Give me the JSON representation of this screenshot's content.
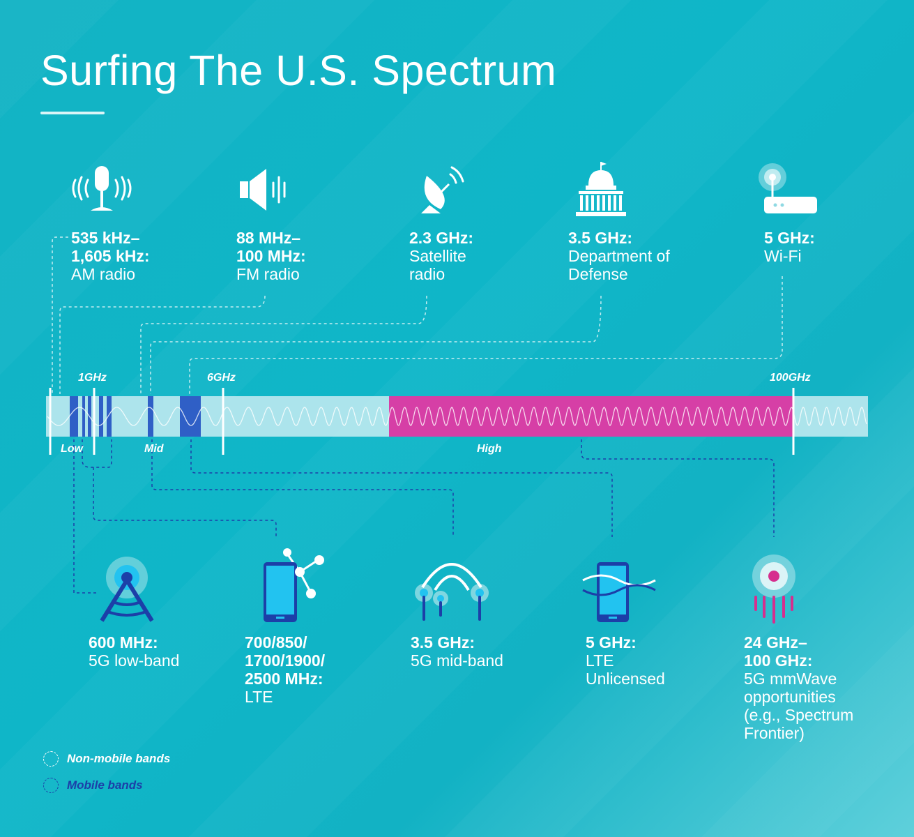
{
  "title": "Surfing The U.S. Spectrum",
  "top_items": [
    {
      "icon": "microphone-icon",
      "freq": "535 kHz–\n1,605 kHz:",
      "desc": "AM radio"
    },
    {
      "icon": "speaker-icon",
      "freq": "88 MHz–\n100 MHz:",
      "desc": "FM radio"
    },
    {
      "icon": "satellite-dish-icon",
      "freq": "2.3 GHz:",
      "desc": "Satellite\nradio"
    },
    {
      "icon": "capitol-building-icon",
      "freq": "3.5 GHz:",
      "desc": "Department of\nDefense"
    },
    {
      "icon": "wifi-router-icon",
      "freq": "5 GHz:",
      "desc": "Wi-Fi"
    }
  ],
  "bottom_items": [
    {
      "icon": "cell-tower-icon",
      "freq": "600 MHz:",
      "desc": "5G low-band"
    },
    {
      "icon": "smartphone-network-icon",
      "freq": "700/850/\n1700/1900/\n2500 MHz:",
      "desc": "LTE"
    },
    {
      "icon": "antenna-arc-icon",
      "freq": "3.5 GHz:",
      "desc": "5G mid-band"
    },
    {
      "icon": "smartphone-waves-icon",
      "freq": "5 GHz:",
      "desc": "LTE\nUnlicensed"
    },
    {
      "icon": "mmwave-emitter-icon",
      "freq": "24 GHz–\n100 GHz:",
      "desc": "5G mmWave\nopportunities\n(e.g., Spectrum\nFrontier)"
    }
  ],
  "spectrum": {
    "ticks": [
      "1GHz",
      "6GHz",
      "100GHz"
    ],
    "ranges": [
      "Low",
      "Mid",
      "High"
    ]
  },
  "legend": [
    {
      "label": "Non-mobile bands",
      "color": "#ffffff"
    },
    {
      "label": "Mobile bands",
      "color": "#1c3fa8"
    }
  ],
  "colors": {
    "background": "#13b3c4",
    "band_light": "#c8ecf2",
    "mobile_band": "#2f5fc6",
    "high_band": "#d63fa6",
    "icon_blue": "#1c3fa8",
    "icon_cyan": "#22c3f0",
    "icon_magenta": "#d62e8e"
  }
}
